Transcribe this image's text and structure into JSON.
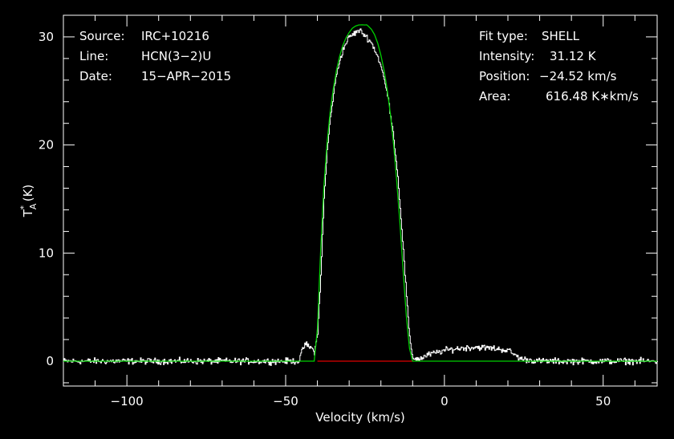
{
  "info_left": {
    "source_label": "Source:",
    "source_value": "IRC+10216",
    "line_label": "Line:",
    "line_value": "HCN(3−2)U",
    "date_label": "Date:",
    "date_value": "15−APR−2015"
  },
  "info_right": {
    "fit_label": "Fit type:",
    "fit_value": "SHELL",
    "intensity_label": "Intensity:",
    "intensity_value": "31.12 K",
    "position_label": "Position:",
    "position_value": "−24.52 km/s",
    "area_label": "Area:",
    "area_value": "616.48 K∗km/s"
  },
  "chart_data": {
    "type": "line",
    "xlabel": "Velocity (km/s)",
    "ylabel_main": "T",
    "ylabel_sup": "*",
    "ylabel_sub": "A",
    "ylabel_unit": " (K)",
    "xlim": [
      -120,
      67
    ],
    "ylim": [
      -2.3,
      32
    ],
    "x_ticks": [
      -100,
      -50,
      0,
      50
    ],
    "x_tick_labels": [
      "−100",
      "−50",
      "0",
      "50"
    ],
    "y_ticks": [
      0,
      10,
      20,
      30
    ],
    "y_tick_labels": [
      "0",
      "10",
      "20",
      "30"
    ],
    "colors": {
      "data": "#ffffff",
      "fit": "#00d000",
      "baseline": "#e00000",
      "frame": "#ffffff"
    },
    "series": [
      {
        "values_note": "observed spectrum",
        "x": [
          -120,
          -100,
          -80,
          -60,
          -46,
          -44,
          -42,
          -41,
          -40,
          -39,
          -38,
          -37,
          -36,
          -35,
          -34,
          -33,
          -32,
          -31,
          -30,
          -29,
          -28,
          -27,
          -26,
          -25,
          -24,
          -23,
          -22,
          -21,
          -20,
          -19,
          -18,
          -17,
          -16,
          -15,
          -14,
          -13,
          -12,
          -11,
          -10,
          -8,
          -5,
          0,
          5,
          10,
          15,
          20,
          22,
          24,
          30,
          40,
          50,
          60,
          67
        ],
        "y": [
          0,
          0,
          0,
          0,
          0,
          1.6,
          1.2,
          0.9,
          2.5,
          8,
          15,
          19.5,
          22.5,
          24.8,
          26.6,
          27.9,
          28.8,
          29.5,
          30.0,
          30.2,
          30.4,
          30.6,
          30.4,
          30.1,
          29.8,
          29.4,
          28.8,
          28.1,
          27.2,
          26.0,
          24.6,
          22.8,
          20.6,
          17.8,
          14.3,
          10.2,
          6.0,
          2.0,
          0.3,
          0.2,
          0.6,
          1.0,
          1.2,
          1.3,
          1.2,
          1.0,
          0.6,
          0.2,
          0,
          0,
          0,
          0,
          0
        ]
      },
      {
        "values_note": "shell fit",
        "x": [
          -120,
          -41,
          -40,
          -39,
          -38,
          -37,
          -36,
          -35,
          -34,
          -33,
          -32,
          -31,
          -30,
          -29,
          -28,
          -27,
          -26,
          -25,
          -24.5,
          -24,
          -23,
          -22,
          -21,
          -20,
          -19,
          -18,
          -17,
          -16,
          -15,
          -14,
          -13,
          -12,
          -11,
          -10,
          67
        ],
        "y": [
          0,
          0,
          3,
          10,
          16,
          20,
          23,
          25.2,
          26.9,
          28.2,
          29.2,
          29.9,
          30.4,
          30.8,
          31.0,
          31.1,
          31.12,
          31.1,
          31.12,
          31.0,
          30.7,
          30.2,
          29.4,
          28.3,
          26.9,
          25.1,
          22.8,
          20.0,
          16.6,
          12.7,
          8.4,
          4.2,
          1.2,
          0,
          0
        ]
      },
      {
        "values_note": "baseline window",
        "x": [
          -40,
          -10
        ],
        "y": [
          0,
          0
        ]
      }
    ]
  }
}
